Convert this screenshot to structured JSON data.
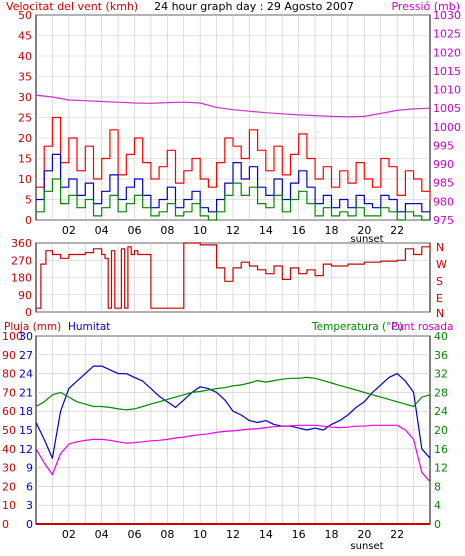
{
  "header": {
    "wind_label": "Velocitat del vent (kmh)",
    "title": "24 hour graph day : 29 Agosto 2007",
    "pressure_label": "Pressió (mb)"
  },
  "labels": {
    "rain": "Pluja (mm)",
    "humidity": "Humitat",
    "temperature": "Temperatura (°C)",
    "dewpoint": "Punt rosada",
    "sunset": "sunset"
  },
  "colors": {
    "frame": "#000000",
    "background": "#ffffff",
    "grid": "#c8c8c8",
    "wind_gust": "#ff0000",
    "wind_avg": "#0000cc",
    "wind_min": "#008800",
    "pressure": "#cc33cc",
    "direction": "#cc0000",
    "humidity": "#0000cc",
    "temperature": "#008800",
    "dewpoint": "#ee00ee",
    "rain": "#cc0000",
    "axis_red": "#cc0000",
    "axis_blue": "#0000cc",
    "axis_green": "#008800",
    "axis_pink": "#cc00cc"
  },
  "chart_data": [
    {
      "type": "line",
      "title": "24 hour graph day : 29 Agosto 2007",
      "xlabel": "",
      "x_ticks": [
        "02",
        "04",
        "06",
        "08",
        "10",
        "12",
        "14",
        "16",
        "18",
        "20",
        "22"
      ],
      "x_range_hours": [
        0,
        24
      ],
      "ylabel": "Velocitat del vent (kmh)",
      "ylim": [
        0,
        50
      ],
      "y_ticks": [
        0,
        5,
        10,
        15,
        20,
        25,
        30,
        35,
        40,
        45,
        50
      ],
      "y2label": "Pressió (mb)",
      "y2lim": [
        975,
        1030
      ],
      "y2_ticks": [
        975,
        980,
        985,
        990,
        995,
        1000,
        1005,
        1010,
        1015,
        1020,
        1025,
        1030
      ],
      "grid": true,
      "series": [
        {
          "axis": "left",
          "color": "#ff0000",
          "x": [
            0.0,
            0.5,
            1.0,
            1.5,
            2.0,
            2.5,
            3.0,
            3.5,
            4.0,
            4.5,
            5.0,
            5.5,
            6.0,
            6.5,
            7.0,
            7.5,
            8.0,
            8.5,
            9.0,
            9.5,
            10.0,
            10.5,
            11.0,
            11.5,
            12.0,
            12.5,
            13.0,
            13.5,
            14.0,
            14.5,
            15.0,
            15.5,
            16.0,
            16.5,
            17.0,
            17.5,
            18.0,
            18.5,
            19.0,
            19.5,
            20.0,
            20.5,
            21.0,
            21.5,
            22.0,
            22.5,
            23.0,
            23.5,
            24.0
          ],
          "values": [
            8,
            18,
            25,
            14,
            20,
            12,
            18,
            10,
            15,
            22,
            11,
            16,
            20,
            14,
            10,
            13,
            17,
            9,
            12,
            15,
            10,
            8,
            14,
            20,
            18,
            15,
            22,
            17,
            12,
            18,
            11,
            16,
            21,
            15,
            10,
            13,
            8,
            12,
            9,
            14,
            10,
            8,
            15,
            13,
            6,
            12,
            10,
            7,
            5
          ]
        },
        {
          "axis": "left",
          "color": "#0000cc",
          "x": [
            0.0,
            0.5,
            1.0,
            1.5,
            2.0,
            2.5,
            3.0,
            3.5,
            4.0,
            4.5,
            5.0,
            5.5,
            6.0,
            6.5,
            7.0,
            7.5,
            8.0,
            8.5,
            9.0,
            9.5,
            10.0,
            10.5,
            11.0,
            11.5,
            12.0,
            12.5,
            13.0,
            13.5,
            14.0,
            14.5,
            15.0,
            15.5,
            16.0,
            16.5,
            17.0,
            17.5,
            18.0,
            18.5,
            19.0,
            19.5,
            20.0,
            20.5,
            21.0,
            21.5,
            22.0,
            22.5,
            23.0,
            23.5,
            24.0
          ],
          "values": [
            5,
            12,
            16,
            8,
            10,
            6,
            9,
            4,
            7,
            11,
            5,
            8,
            10,
            6,
            3,
            5,
            8,
            3,
            5,
            7,
            3,
            2,
            5,
            9,
            14,
            10,
            13,
            8,
            6,
            10,
            5,
            9,
            12,
            8,
            4,
            6,
            3,
            5,
            3,
            6,
            4,
            3,
            6,
            5,
            2,
            4,
            4,
            2,
            2
          ]
        },
        {
          "axis": "left",
          "color": "#008800",
          "x": [
            0.0,
            0.5,
            1.0,
            1.5,
            2.0,
            2.5,
            3.0,
            3.5,
            4.0,
            4.5,
            5.0,
            5.5,
            6.0,
            6.5,
            7.0,
            7.5,
            8.0,
            8.5,
            9.0,
            9.5,
            10.0,
            10.5,
            11.0,
            11.5,
            12.0,
            12.5,
            13.0,
            13.5,
            14.0,
            14.5,
            15.0,
            15.5,
            16.0,
            16.5,
            17.0,
            17.5,
            18.0,
            18.5,
            19.0,
            19.5,
            20.0,
            20.5,
            21.0,
            21.5,
            22.0,
            22.5,
            23.0,
            23.5,
            24.0
          ],
          "values": [
            2,
            7,
            10,
            4,
            6,
            3,
            5,
            1,
            3,
            6,
            2,
            4,
            6,
            3,
            1,
            2,
            4,
            1,
            2,
            4,
            1,
            0,
            2,
            6,
            9,
            6,
            8,
            4,
            3,
            6,
            2,
            5,
            7,
            4,
            1,
            3,
            1,
            2,
            1,
            3,
            1,
            1,
            3,
            2,
            0,
            2,
            1,
            0,
            0
          ]
        },
        {
          "axis": "right",
          "color": "#cc33cc",
          "x": [
            0,
            1,
            2,
            3,
            4,
            5,
            6,
            7,
            8,
            9,
            10,
            11,
            12,
            13,
            14,
            15,
            16,
            17,
            18,
            19,
            20,
            21,
            22,
            23,
            24
          ],
          "values": [
            1008.5,
            1008,
            1007.2,
            1007,
            1006.8,
            1006.6,
            1006.4,
            1006.3,
            1006.5,
            1006.6,
            1006.4,
            1005.2,
            1004.6,
            1004.2,
            1003.8,
            1003.5,
            1003.2,
            1003.0,
            1002.8,
            1002.7,
            1002.8,
            1003.6,
            1004.4,
            1004.8,
            1005.0
          ]
        }
      ]
    },
    {
      "type": "line",
      "y_ticks": [
        0,
        90,
        180,
        270,
        360
      ],
      "ylim": [
        0,
        360
      ],
      "compass_labels": [
        "N",
        "W",
        "S",
        "E",
        "N"
      ],
      "series": [
        {
          "color": "#cc0000",
          "x": [
            0.0,
            0.3,
            0.6,
            1.0,
            1.5,
            2.0,
            3.0,
            3.5,
            4.0,
            4.2,
            4.4,
            4.6,
            4.8,
            5.0,
            5.2,
            5.4,
            5.6,
            5.8,
            6.0,
            6.2,
            7.0,
            7.5,
            8.0,
            8.5,
            9.0,
            9.5,
            10.0,
            10.5,
            11.0,
            11.5,
            12.0,
            12.5,
            13.0,
            13.5,
            14.0,
            14.5,
            15.0,
            15.5,
            16.0,
            16.5,
            17.0,
            17.5,
            18.0,
            19.0,
            20.0,
            21.0,
            22.0,
            22.5,
            23.0,
            23.5,
            24.0
          ],
          "values": [
            20,
            250,
            320,
            300,
            280,
            300,
            310,
            330,
            300,
            280,
            20,
            320,
            20,
            20,
            330,
            20,
            340,
            300,
            320,
            300,
            20,
            20,
            20,
            20,
            360,
            360,
            350,
            350,
            230,
            160,
            230,
            260,
            240,
            220,
            200,
            240,
            170,
            230,
            200,
            220,
            190,
            250,
            240,
            250,
            260,
            265,
            270,
            330,
            300,
            340,
            310
          ]
        }
      ]
    },
    {
      "type": "line",
      "ylabel": "Pluja (mm)",
      "ylim": [
        0,
        30
      ],
      "y_ticks": [
        0,
        3,
        6,
        9,
        12,
        15,
        18,
        21,
        24,
        27,
        30
      ],
      "y_hum_ticks": [
        0,
        10,
        20,
        30,
        40,
        50,
        60,
        70,
        80,
        90,
        100
      ],
      "y2label": "Temperatura (°C)",
      "y2lim": [
        0,
        40
      ],
      "y2_ticks": [
        0,
        4,
        8,
        12,
        16,
        20,
        24,
        28,
        32,
        36,
        40
      ],
      "series": [
        {
          "name": "Humitat",
          "axis": "humidity",
          "color": "#0000cc",
          "x": [
            0.0,
            0.5,
            1.0,
            1.5,
            2.0,
            2.5,
            3.0,
            3.5,
            4.0,
            4.5,
            5.0,
            5.5,
            6.0,
            6.5,
            7.0,
            7.5,
            8.0,
            8.5,
            9.0,
            9.5,
            10.0,
            10.5,
            11.0,
            11.5,
            12.0,
            12.5,
            13.0,
            13.5,
            14.0,
            14.5,
            15.0,
            15.5,
            16.0,
            16.5,
            17.0,
            17.5,
            18.0,
            18.5,
            19.0,
            19.5,
            20.0,
            20.5,
            21.0,
            21.5,
            22.0,
            22.5,
            23.0,
            23.5,
            24.0
          ],
          "values": [
            54,
            45,
            35,
            60,
            72,
            76,
            80,
            84,
            84,
            82,
            80,
            80,
            78,
            76,
            72,
            68,
            65,
            62,
            66,
            70,
            73,
            72,
            70,
            66,
            60,
            58,
            55,
            54,
            55,
            53,
            52,
            52,
            51,
            50,
            51,
            50,
            53,
            55,
            58,
            62,
            65,
            70,
            74,
            78,
            80,
            76,
            70,
            40,
            35
          ]
        },
        {
          "name": "Temperatura (°C)",
          "axis": "temperature",
          "color": "#008800",
          "x": [
            0.0,
            0.5,
            1.0,
            1.5,
            2.0,
            2.5,
            3.0,
            3.5,
            4.0,
            4.5,
            5.0,
            5.5,
            6.0,
            6.5,
            7.0,
            7.5,
            8.0,
            8.5,
            9.0,
            9.5,
            10.0,
            10.5,
            11.0,
            11.5,
            12.0,
            12.5,
            13.0,
            13.5,
            14.0,
            14.5,
            15.0,
            15.5,
            16.0,
            16.5,
            17.0,
            17.5,
            18.0,
            18.5,
            19.0,
            19.5,
            20.0,
            20.5,
            21.0,
            21.5,
            22.0,
            22.5,
            23.0,
            23.5,
            24.0
          ],
          "values": [
            25,
            26,
            27.5,
            28,
            27,
            26,
            25.5,
            25,
            25,
            24.8,
            24.5,
            24.3,
            24.5,
            25,
            25.5,
            26,
            26.5,
            27,
            27.5,
            28,
            28.2,
            28.5,
            28.8,
            29,
            29.4,
            29.6,
            30,
            30.5,
            30.2,
            30.5,
            30.8,
            31,
            31,
            31.2,
            31,
            30.5,
            30,
            29.5,
            29,
            28.5,
            28,
            27.5,
            27,
            26.5,
            26,
            25.5,
            25,
            27,
            27.5
          ]
        },
        {
          "name": "Punt rosada",
          "axis": "temperature",
          "color": "#ee00ee",
          "x": [
            0.0,
            0.5,
            1.0,
            1.5,
            2.0,
            2.5,
            3.0,
            3.5,
            4.0,
            4.5,
            5.0,
            5.5,
            6.0,
            6.5,
            7.0,
            7.5,
            8.0,
            8.5,
            9.0,
            9.5,
            10.0,
            10.5,
            11.0,
            11.5,
            12.0,
            12.5,
            13.0,
            13.5,
            14.0,
            14.5,
            15.0,
            15.5,
            16.0,
            16.5,
            17.0,
            17.5,
            18.0,
            18.5,
            19.0,
            19.5,
            20.0,
            20.5,
            21.0,
            21.5,
            22.0,
            22.5,
            23.0,
            23.5,
            24.0
          ],
          "values": [
            16,
            13,
            10.5,
            15,
            17,
            17.5,
            17.8,
            18,
            18,
            17.8,
            17.5,
            17.2,
            17.3,
            17.5,
            17.7,
            17.8,
            18,
            18.3,
            18.5,
            18.8,
            19,
            19.2,
            19.5,
            19.7,
            19.8,
            20,
            20.2,
            20.3,
            20.5,
            20.7,
            20.8,
            20.9,
            21,
            21,
            21,
            20.8,
            20.6,
            20.5,
            20.6,
            20.8,
            20.8,
            21,
            21,
            21,
            21,
            20,
            18,
            11,
            9
          ]
        },
        {
          "name": "Pluja (mm)",
          "axis": "rain",
          "color": "#cc0000",
          "x": [
            0,
            24
          ],
          "values": [
            0,
            0
          ]
        }
      ]
    }
  ]
}
